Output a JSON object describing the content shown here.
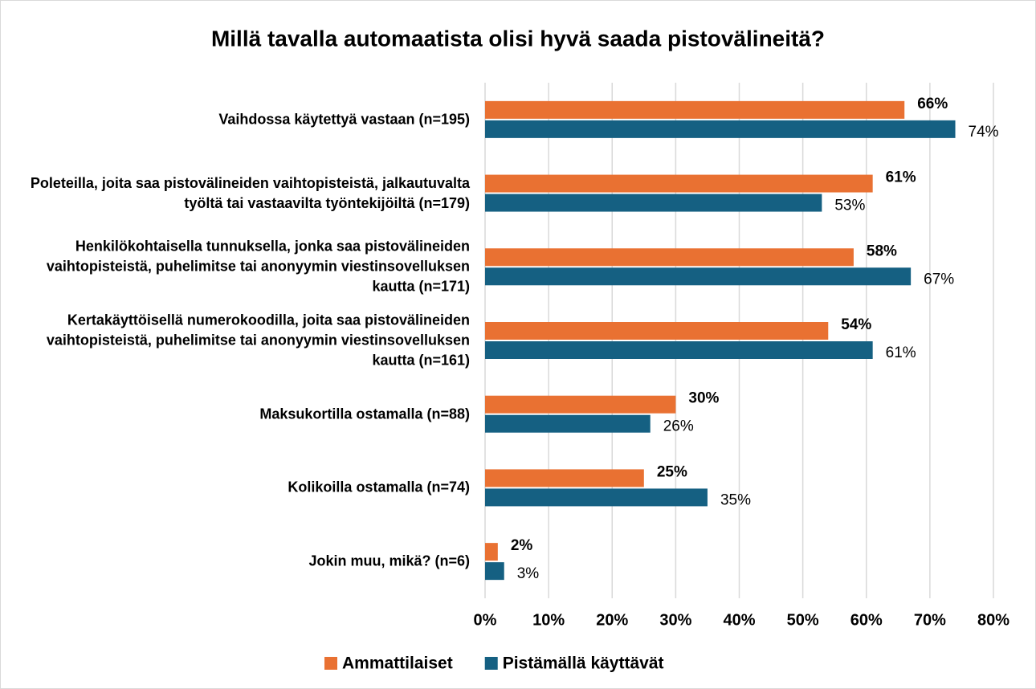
{
  "chart_data": {
    "type": "hbar",
    "title": "Millä tavalla automaatista olisi hyvä saada pistovälineitä?",
    "categories": [
      "Vaihdossa käytettyä vastaan (n=195)",
      "Poleteilla, joita saa pistovälineiden vaihtopisteistä, jalkautuvalta työltä tai vastaavilta työntekijöiltä (n=179)",
      "Henkilökohtaisella tunnuksella, jonka saa pistovälineiden vaihtopisteistä, puhelimitse tai anonyymin viestinsovelluksen kautta (n=171)",
      "Kertakäyttöisellä numerokoodilla, joita saa pistovälineiden vaihtopisteistä, puhelimitse tai anonyymin viestinsovelluksen kautta (n=161)",
      "Maksukortilla ostamalla (n=88)",
      "Kolikoilla ostamalla (n=74)",
      "Jokin muu, mikä? (n=6)"
    ],
    "series": [
      {
        "name": "Ammattilaiset",
        "color": "#e97132",
        "values": [
          66,
          61,
          58,
          54,
          30,
          25,
          2
        ],
        "value_labels": [
          "66%",
          "61%",
          "58%",
          "54%",
          "30%",
          "25%",
          "2%"
        ]
      },
      {
        "name": "Pistämällä käyttävät",
        "color": "#156082",
        "values": [
          74,
          53,
          67,
          61,
          26,
          35,
          3
        ],
        "value_labels": [
          "74%",
          "53%",
          "67%",
          "61%",
          "26%",
          "35%",
          "3%"
        ]
      }
    ],
    "xlim": [
      0,
      80
    ],
    "xticks": [
      {
        "value": 0,
        "label": "0%"
      },
      {
        "value": 10,
        "label": "10%"
      },
      {
        "value": 20,
        "label": "20%"
      },
      {
        "value": 30,
        "label": "30%"
      },
      {
        "value": 40,
        "label": "40%"
      },
      {
        "value": 50,
        "label": "50%"
      },
      {
        "value": 60,
        "label": "60%"
      },
      {
        "value": 70,
        "label": "70%"
      },
      {
        "value": 80,
        "label": "80%"
      }
    ],
    "grid": true,
    "legend": "bottom"
  }
}
